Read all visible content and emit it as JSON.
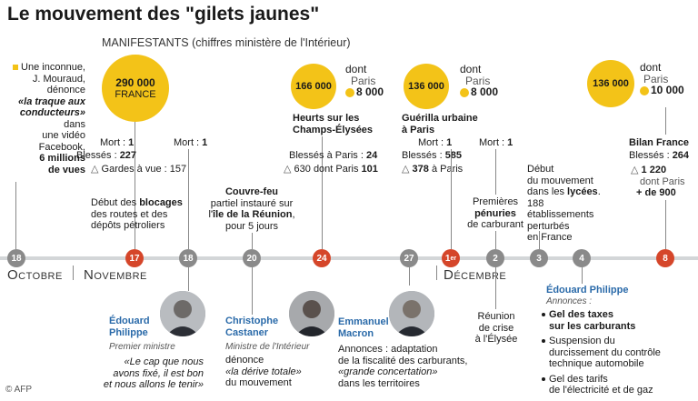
{
  "title": "Le mouvement des \"gilets jaunes\"",
  "subtitle_a": "MANIFESTANTS",
  "subtitle_b": " (chiffres ministère de l'Intérieur)",
  "intro": {
    "l1": "Une inconnue,",
    "l2": "J. Mouraud,",
    "l3": "dénonce",
    "l4": "«la traque aux",
    "l5": "conducteurs»",
    "l6": "dans",
    "l7": "une vidéo",
    "l8": "Facebook,",
    "l9": "6 millions",
    "l10": "de vues"
  },
  "c1": {
    "value": "290 000",
    "label": "FRANCE",
    "dead_label": "Mort : ",
    "dead": "1",
    "injured_label": "Blessés : ",
    "injured": "227",
    "custody_label": "Gardes à vue : ",
    "custody": "157"
  },
  "c2": {
    "dead_label": "Mort : ",
    "dead": "1"
  },
  "c3": {
    "value": "166 000",
    "dont": "dont",
    "paris": "Paris",
    "paris_value": "8 000",
    "h1": "Heurts sur les",
    "h2": "Champs-Élysées",
    "injured_label": "Blessés à Paris : ",
    "injured": "24",
    "custody": "630 dont Paris ",
    "custody_paris": "101"
  },
  "c4": {
    "value": "136 000",
    "dont": "dont",
    "paris": "Paris",
    "paris_value": "8 000",
    "h1": "Guérilla urbaine",
    "h2": "à Paris",
    "dead_label": "Mort : ",
    "dead": "1",
    "injured_label": "Blessés : ",
    "injured": "585",
    "custody": "378",
    "custody_paris": " à Paris"
  },
  "c5": {
    "dead_label": "Mort : ",
    "dead": "1"
  },
  "c6": {
    "value": "136 000",
    "dont": "dont",
    "paris": "Paris",
    "paris_value": "10 000",
    "h1": "Bilan France",
    "injured_label": "Blessés : ",
    "injured": "264",
    "custody": "1 220",
    "custody_paris": "dont Paris",
    "custody_extra": "+ de 900"
  },
  "ev": {
    "blocages": [
      "Début des ",
      "blocages",
      "des routes et des",
      "dépôts pétroliers"
    ],
    "couvrefeu": [
      "Couvre-feu",
      "partiel instauré sur",
      "l'",
      "île de la Réunion",
      ",",
      "pour 5 jours"
    ],
    "penuries": [
      "Premières",
      "pénuries",
      "de carburant"
    ],
    "lycees": [
      "Début",
      "du mouvement",
      "dans les ",
      "lycées",
      ".",
      "188 établissements",
      "perturbés",
      "en France"
    ],
    "reunion": [
      "Réunion",
      "de crise",
      "à l'Élysée"
    ]
  },
  "timeline": {
    "oct": "Octobre",
    "nov": "Novembre",
    "dec": "Décembre",
    "d18a": "18",
    "d17": "17",
    "d18b": "18",
    "d20": "20",
    "d24": "24",
    "d27": "27",
    "d1": "1",
    "d1sup": "er",
    "d2": "2",
    "d3": "3",
    "d4": "4",
    "d8": "8"
  },
  "people": {
    "philippe1": {
      "name1": "Édouard",
      "name2": "Philippe",
      "role": "Premier ministre",
      "q1": "«Le cap que nous",
      "q2": "avons fixé, il est bon",
      "q3": "et nous allons le tenir»"
    },
    "castaner": {
      "name1": "Christophe",
      "name2": "Castaner",
      "role": "Ministre de l'Intérieur",
      "q1": "dénonce",
      "q2": "«la dérive totale»",
      "q3": "du mouvement"
    },
    "macron": {
      "name1": "Emmanuel",
      "name2": "Macron",
      "q1": "Annonces : adaptation",
      "q2": "de la fiscalité des carburants,",
      "q3": "«grande concertation»",
      "q4": "dans les territoires"
    },
    "philippe2": {
      "name": "Édouard Philippe",
      "role": "Annonces :",
      "a1": "Gel des taxes",
      "a2": "sur les carburants",
      "b1": "Suspension du",
      "b2": "durcissement du contrôle",
      "b3": "technique automobile",
      "c1": "Gel des tarifs",
      "c2": "de l'électricité et de gaz"
    }
  },
  "credit": "© AFP",
  "colors": {
    "yellow": "#f3c318",
    "red": "#d5462a",
    "grey": "#8a8a8a",
    "blue": "#2a6aa9"
  }
}
